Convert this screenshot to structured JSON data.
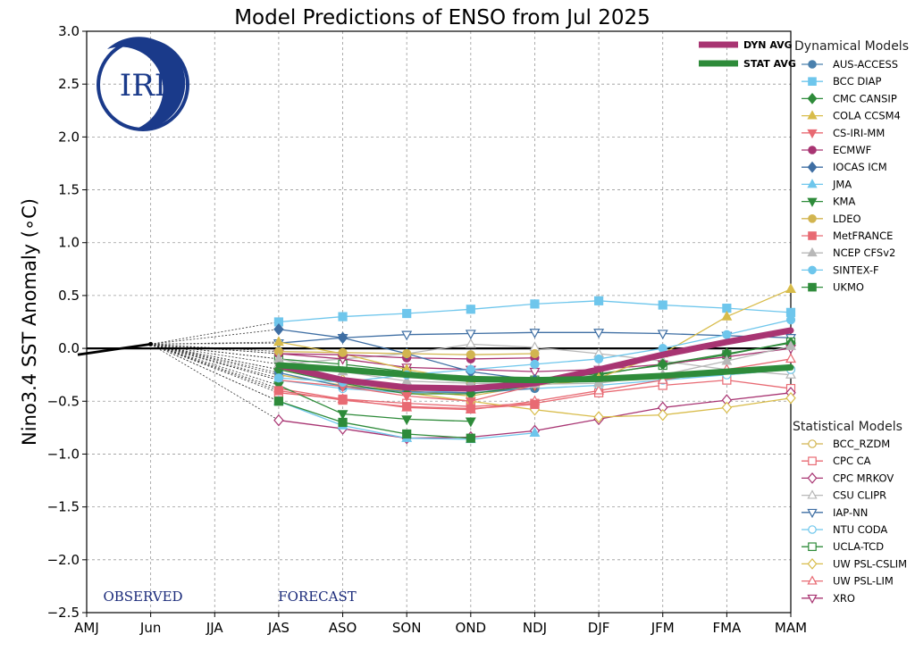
{
  "chart_data": {
    "type": "line",
    "title": "Model Predictions of ENSO from Jul 2025",
    "ylabel": "Nino3.4 SST Anomaly (∘C)",
    "xlabel": "",
    "categories": [
      "AMJ",
      "Jun",
      "JJA",
      "JAS",
      "ASO",
      "SON",
      "OND",
      "NDJ",
      "DJF",
      "JFM",
      "FMA",
      "MAM"
    ],
    "ylim": [
      -2.5,
      3.0
    ],
    "yticks": [
      -2.5,
      -2.0,
      -1.5,
      -1.0,
      -0.5,
      0.0,
      0.5,
      1.0,
      1.5,
      2.0,
      2.5,
      3.0
    ],
    "ytick_labels": [
      "−2.5",
      "−2.0",
      "−1.5",
      "−1.0",
      "−0.5",
      "0.0",
      "0.5",
      "1.0",
      "1.5",
      "2.0",
      "2.5",
      "3.0"
    ],
    "grid": true,
    "logo_text": "IRI",
    "annotations": {
      "observed": "OBSERVED",
      "forecast": "FORECAST"
    },
    "observed": {
      "x": [
        "AMJ",
        "Jun"
      ],
      "values": [
        -0.06,
        0.04
      ]
    },
    "averages": [
      {
        "name": "DYN AVG",
        "color": "#a83472",
        "values": [
          -0.16,
          -0.3,
          -0.37,
          -0.38,
          -0.33,
          -0.2,
          -0.06,
          0.06,
          0.17
        ]
      },
      {
        "name": "STAT AVG",
        "color": "#2e8b3a",
        "values": [
          -0.16,
          -0.2,
          -0.25,
          -0.29,
          -0.3,
          -0.29,
          -0.26,
          -0.22,
          -0.18
        ]
      }
    ],
    "legend_dynamical_title": "Dynamical Models",
    "legend_statistical_title": "Statistical Models",
    "dynamical": [
      {
        "name": "AUS-ACCESS",
        "color": "#4a80ad",
        "marker": "circle",
        "fill": true,
        "values": [
          -0.23,
          -0.36,
          -0.41,
          -0.42,
          -0.38
        ]
      },
      {
        "name": "BCC DIAP",
        "color": "#6ec6ec",
        "marker": "square",
        "fill": true,
        "values": [
          0.25,
          0.3,
          0.33,
          0.37,
          0.42,
          0.45,
          0.41,
          0.38,
          0.34
        ]
      },
      {
        "name": "CMC CANSIP",
        "color": "#2e8b3a",
        "marker": "diamond",
        "fill": true,
        "values": [
          -0.2,
          -0.33,
          -0.43,
          -0.43,
          -0.35,
          -0.25,
          -0.15,
          -0.05,
          0.05
        ]
      },
      {
        "name": "COLA CCSM4",
        "color": "#d8bc4a",
        "marker": "triangle-up",
        "fill": true,
        "values": [
          0.06,
          -0.05,
          -0.2,
          -0.3,
          -0.33,
          -0.28,
          -0.05,
          0.3,
          0.56
        ]
      },
      {
        "name": "CS-IRI-MM",
        "color": "#e86a73",
        "marker": "triangle-down",
        "fill": true,
        "values": [
          -0.3,
          -0.36,
          -0.45,
          -0.5,
          -0.35
        ]
      },
      {
        "name": "ECMWF",
        "color": "#a83472",
        "marker": "circle",
        "fill": true,
        "values": [
          -0.05,
          -0.06,
          -0.09,
          -0.1,
          -0.09
        ]
      },
      {
        "name": "IOCAS ICM",
        "color": "#3e6ea3",
        "marker": "diamond",
        "fill": true,
        "values": [
          0.18,
          0.1,
          -0.05,
          -0.22,
          -0.3
        ]
      },
      {
        "name": "JMA",
        "color": "#6ec6ec",
        "marker": "triangle-up",
        "fill": true,
        "values": [
          -0.5,
          -0.73,
          -0.85,
          -0.86,
          -0.8
        ]
      },
      {
        "name": "KMA",
        "color": "#2e8b3a",
        "marker": "triangle-down",
        "fill": true,
        "values": [
          -0.35,
          -0.62,
          -0.67,
          -0.69
        ]
      },
      {
        "name": "LDEO",
        "color": "#d2b550",
        "marker": "circle",
        "fill": true,
        "values": [
          -0.03,
          -0.04,
          -0.05,
          -0.06,
          -0.05
        ]
      },
      {
        "name": "MetFRANCE",
        "color": "#e86a73",
        "marker": "square",
        "fill": true,
        "values": [
          -0.4,
          -0.49,
          -0.55,
          -0.57,
          -0.53
        ]
      },
      {
        "name": "NCEP CFSv2",
        "color": "#b8b8b8",
        "marker": "triangle-up",
        "fill": true,
        "values": [
          -0.1,
          -0.22,
          -0.31,
          -0.33,
          -0.34,
          -0.33,
          -0.25,
          -0.12,
          0.02
        ]
      },
      {
        "name": "SINTEX-F",
        "color": "#6ec6ec",
        "marker": "circle",
        "fill": true,
        "values": [
          -0.28,
          -0.32,
          -0.25,
          -0.2,
          -0.15,
          -0.1,
          0.0,
          0.13,
          0.27
        ]
      },
      {
        "name": "UKMO",
        "color": "#2e8b3a",
        "marker": "square",
        "fill": true,
        "values": [
          -0.5,
          -0.7,
          -0.81,
          -0.85
        ]
      }
    ],
    "statistical": [
      {
        "name": "BCC_RZDM",
        "color": "#d2b550",
        "marker": "circle",
        "fill": false,
        "values": [
          -0.25,
          -0.35,
          -0.4,
          -0.45,
          -0.35,
          -0.3,
          -0.28,
          -0.25,
          -0.2
        ]
      },
      {
        "name": "CPC CA",
        "color": "#e86a73",
        "marker": "square",
        "fill": false,
        "values": [
          -0.42,
          -0.48,
          -0.52,
          -0.55,
          -0.52,
          -0.42,
          -0.35,
          -0.3,
          -0.38
        ]
      },
      {
        "name": "CPC MRKOV",
        "color": "#a83472",
        "marker": "diamond",
        "fill": false,
        "values": [
          -0.68,
          -0.76,
          -0.85,
          -0.84,
          -0.78,
          -0.67,
          -0.56,
          -0.49,
          -0.42
        ]
      },
      {
        "name": "CSU CLIPR",
        "color": "#b8b8b8",
        "marker": "triangle-up",
        "fill": false,
        "values": [
          -0.15,
          -0.1,
          -0.05,
          0.04,
          0.01,
          -0.05,
          -0.12,
          -0.2,
          -0.25
        ]
      },
      {
        "name": "IAP-NN",
        "color": "#3e6ea3",
        "marker": "triangle-down",
        "fill": false,
        "values": [
          0.05,
          0.1,
          0.13,
          0.14,
          0.15,
          0.15,
          0.14,
          0.12,
          0.1
        ]
      },
      {
        "name": "NTU CODA",
        "color": "#6ec6ec",
        "marker": "circle",
        "fill": false,
        "values": [
          -0.3,
          -0.38,
          -0.42,
          -0.4,
          -0.38,
          -0.35,
          -0.3,
          -0.25,
          -0.2
        ]
      },
      {
        "name": "UCLA-TCD",
        "color": "#2e8b3a",
        "marker": "square",
        "fill": false,
        "values": [
          -0.1,
          -0.15,
          -0.22,
          -0.3,
          -0.3,
          -0.24,
          -0.16,
          -0.06,
          0.06
        ]
      },
      {
        "name": "UW PSL-CSLIM",
        "color": "#d8bc4a",
        "marker": "diamond",
        "fill": false,
        "values": [
          -0.2,
          -0.3,
          -0.42,
          -0.5,
          -0.58,
          -0.65,
          -0.63,
          -0.56,
          -0.47
        ]
      },
      {
        "name": "UW PSL-LIM",
        "color": "#e86a73",
        "marker": "triangle-up",
        "fill": false,
        "values": [
          -0.38,
          -0.48,
          -0.56,
          -0.58,
          -0.5,
          -0.4,
          -0.3,
          -0.2,
          -0.1
        ]
      },
      {
        "name": "XRO",
        "color": "#a83472",
        "marker": "triangle-down",
        "fill": false,
        "values": [
          -0.05,
          -0.1,
          -0.18,
          -0.2,
          -0.22,
          -0.2,
          -0.15,
          -0.08,
          0.0
        ]
      }
    ]
  }
}
